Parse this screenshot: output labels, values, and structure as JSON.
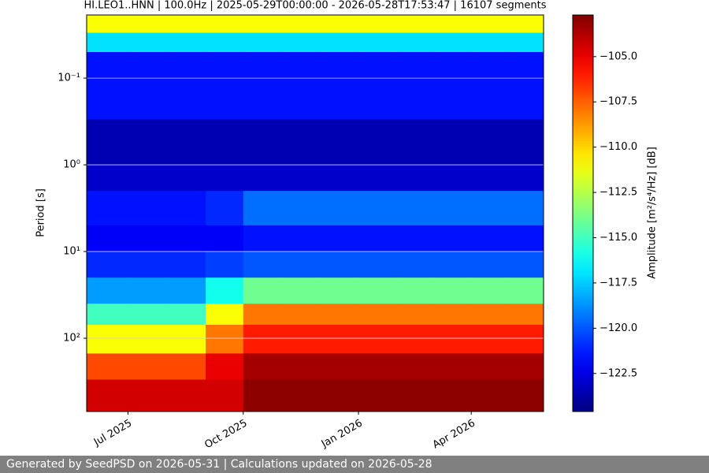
{
  "chart_data": {
    "type": "heatmap",
    "title": "HI.LEO1..HNN | 100.0Hz | 2025-05-29T00:00:00 - 2026-05-28T17:53:47 | 16107 segments",
    "ylabel": "Period [s]",
    "colorbar_label": "Amplitude [m²/s⁴/Hz] [dB]",
    "colormap": "jet",
    "yscale": "log",
    "yinverted": true,
    "grid": true,
    "ylim": [
      0.0187,
      700
    ],
    "yticks": [
      {
        "value": 0.1,
        "label": "10⁻¹"
      },
      {
        "value": 1,
        "label": "10⁰"
      },
      {
        "value": 10,
        "label": "10¹"
      },
      {
        "value": 100,
        "label": "10²"
      }
    ],
    "xlim": [
      "2025-05-29T00:00:00",
      "2026-05-28T17:53:47"
    ],
    "xticks": [
      {
        "value": "2025-07",
        "label": "Jul 2025"
      },
      {
        "value": "2025-10",
        "label": "Oct 2025"
      },
      {
        "value": "2026-01",
        "label": "Jan 2026"
      },
      {
        "value": "2026-04",
        "label": "Apr 2026"
      }
    ],
    "clim": [
      -124.6,
      -102.7
    ],
    "cticks": [
      {
        "value": -105,
        "label": "−105.0"
      },
      {
        "value": -107.5,
        "label": "−107.5"
      },
      {
        "value": -110,
        "label": "−110.0"
      },
      {
        "value": -112.5,
        "label": "−112.5"
      },
      {
        "value": -115,
        "label": "−115.0"
      },
      {
        "value": -117.5,
        "label": "−117.5"
      },
      {
        "value": -120,
        "label": "−120.0"
      },
      {
        "value": -122.5,
        "label": "−122.5"
      }
    ],
    "x_edges": [
      "2025-05-29T00:00:00",
      "2025-06",
      "2025-07",
      "2025-08",
      "2025-09",
      "2025-10",
      "2025-11",
      "2025-12",
      "2026-01",
      "2026-02",
      "2026-03",
      "2026-04",
      "2026-05",
      "2026-05-28T17:53:47"
    ],
    "y_edges": [
      0.0187,
      0.03,
      0.05,
      0.3,
      1,
      2,
      5,
      10,
      20,
      40,
      70,
      150,
      300,
      700
    ],
    "z": [
      [
        -111,
        -111,
        -111,
        -111,
        -111,
        -111,
        -111,
        -111,
        -111,
        -111,
        -111,
        -111,
        -111
      ],
      [
        -117,
        -117,
        -117,
        -117,
        -117,
        -117,
        -117,
        -117,
        -117,
        -117,
        -117,
        -117,
        -117
      ],
      [
        -121.5,
        -121.5,
        -121.5,
        -121.5,
        -121.5,
        -121.5,
        -121.5,
        -121.5,
        -121.5,
        -121.5,
        -121.5,
        -121.5,
        -121.5
      ],
      [
        -123.5,
        -123.5,
        -123.5,
        -123.5,
        -123.5,
        -123.5,
        -123.5,
        -123.5,
        -123.5,
        -123.5,
        -123.5,
        -123.5,
        -123.5
      ],
      [
        -123,
        -123,
        -123,
        -123,
        -123,
        -123,
        -123,
        -123,
        -123,
        -123,
        -123,
        -123,
        -123
      ],
      [
        -121.5,
        -121.5,
        -121.5,
        -121.5,
        -121,
        -119.5,
        -119.5,
        -119.5,
        -119.5,
        -119.5,
        -119.5,
        -119.5,
        -119.5
      ],
      [
        -122,
        -122,
        -122,
        -122,
        -122,
        -121.5,
        -121.5,
        -121.5,
        -121.5,
        -121.5,
        -121.5,
        -121.5,
        -121.5
      ],
      [
        -121,
        -121,
        -121,
        -121,
        -120.5,
        -120,
        -120,
        -120,
        -120,
        -120,
        -120,
        -120,
        -120
      ],
      [
        -118.5,
        -118.5,
        -118.5,
        -118.5,
        -116,
        -114,
        -114,
        -114,
        -114,
        -114,
        -114,
        -114,
        -114
      ],
      [
        -115,
        -115,
        -115,
        -115,
        -111,
        -108,
        -108,
        -108,
        -108,
        -108,
        -108,
        -108,
        -108
      ],
      [
        -111,
        -111,
        -111,
        -111,
        -108,
        -106,
        -106,
        -106,
        -106,
        -106,
        -106,
        -106,
        -106
      ],
      [
        -107,
        -107,
        -107,
        -107,
        -105,
        -103.5,
        -103.5,
        -103.5,
        -103.5,
        -103.5,
        -103.5,
        -103.5,
        -103.5
      ],
      [
        -104.5,
        -104.5,
        -104.5,
        -104.5,
        -104.5,
        -103,
        -103,
        -103,
        -103,
        -103,
        -103,
        -103,
        -103
      ]
    ],
    "footer": "Generated by SeedPSD on 2026-05-31 | Calculations updated on 2026-05-28"
  }
}
